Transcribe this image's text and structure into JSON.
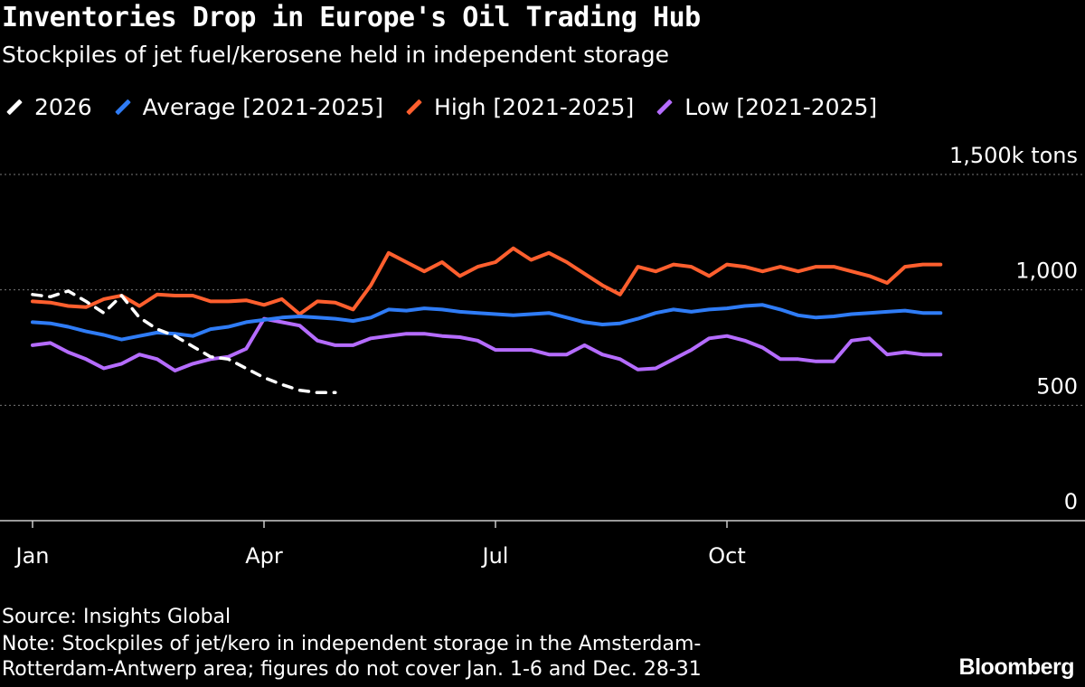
{
  "header": {
    "title": "Inventories Drop in Europe's Oil Trading Hub",
    "subtitle": "Stockpiles of jet fuel/kerosene held in independent storage"
  },
  "footer": {
    "source": "Source: Insights Global",
    "note_line1": "Note: Stockpiles of jet/kero in independent storage in the Amsterdam-",
    "note_line2": "Rotterdam-Antwerp area; figures do not cover Jan. 1-6 and Dec. 28-31",
    "brand": "Bloomberg"
  },
  "colors": {
    "background": "#000000",
    "s2026": "#ffffff",
    "average": "#2f7cf6",
    "high": "#ff5f2e",
    "low": "#b56cff",
    "grid": "#777777"
  },
  "chart_data": {
    "type": "line",
    "title": "Inventories Drop in Europe's Oil Trading Hub",
    "subtitle": "Stockpiles of jet fuel/kerosene held in independent storage",
    "ylim": [
      0,
      1500
    ],
    "y_ticks": [
      {
        "value": 0,
        "label": "0"
      },
      {
        "value": 500,
        "label": "500"
      },
      {
        "value": 1000,
        "label": "1,000"
      },
      {
        "value": 1500,
        "label": "1,500k tons"
      }
    ],
    "xlim": [
      0,
      52
    ],
    "x_ticks": [
      {
        "week": 0,
        "label": "Jan"
      },
      {
        "week": 13,
        "label": "Apr"
      },
      {
        "week": 26,
        "label": "Jul"
      },
      {
        "week": 39,
        "label": "Oct"
      }
    ],
    "grid": true,
    "legend_position": "top-left",
    "series": [
      {
        "name": "2026",
        "color": "#ffffff",
        "dashed": true,
        "x": [
          0,
          1,
          2,
          3,
          4,
          5,
          6,
          7,
          8,
          9,
          10,
          11,
          12,
          13,
          14,
          15,
          16,
          17
        ],
        "values": [
          980,
          970,
          995,
          950,
          900,
          975,
          880,
          830,
          800,
          755,
          710,
          700,
          660,
          620,
          590,
          565,
          555,
          555
        ]
      },
      {
        "name": "Average [2021-2025]",
        "color": "#2f7cf6",
        "dashed": false,
        "x": [
          0,
          1,
          2,
          3,
          4,
          5,
          6,
          7,
          8,
          9,
          10,
          11,
          12,
          13,
          14,
          15,
          16,
          17,
          18,
          19,
          20,
          21,
          22,
          23,
          24,
          25,
          26,
          27,
          28,
          29,
          30,
          31,
          32,
          33,
          34,
          35,
          36,
          37,
          38,
          39,
          40,
          41,
          42,
          43,
          44,
          45,
          46,
          47,
          48,
          49,
          50,
          51
        ],
        "values": [
          860,
          855,
          840,
          820,
          805,
          785,
          800,
          815,
          810,
          800,
          830,
          840,
          860,
          870,
          880,
          885,
          880,
          875,
          865,
          880,
          915,
          910,
          920,
          915,
          905,
          900,
          895,
          890,
          895,
          900,
          880,
          860,
          850,
          855,
          875,
          900,
          915,
          905,
          915,
          920,
          930,
          935,
          915,
          890,
          880,
          885,
          895,
          900,
          905,
          910,
          900,
          900
        ]
      },
      {
        "name": "High [2021-2025]",
        "color": "#ff5f2e",
        "dashed": false,
        "x": [
          0,
          1,
          2,
          3,
          4,
          5,
          6,
          7,
          8,
          9,
          10,
          11,
          12,
          13,
          14,
          15,
          16,
          17,
          18,
          19,
          20,
          21,
          22,
          23,
          24,
          25,
          26,
          27,
          28,
          29,
          30,
          31,
          32,
          33,
          34,
          35,
          36,
          37,
          38,
          39,
          40,
          41,
          42,
          43,
          44,
          45,
          46,
          47,
          48,
          49,
          50,
          51
        ],
        "values": [
          950,
          945,
          930,
          925,
          960,
          975,
          930,
          980,
          975,
          975,
          950,
          950,
          955,
          935,
          960,
          895,
          950,
          945,
          915,
          1020,
          1160,
          1120,
          1080,
          1120,
          1060,
          1100,
          1120,
          1180,
          1130,
          1160,
          1120,
          1070,
          1020,
          980,
          1100,
          1080,
          1110,
          1100,
          1060,
          1110,
          1100,
          1080,
          1100,
          1080,
          1100,
          1100,
          1080,
          1060,
          1030,
          1100,
          1110,
          1110
        ]
      },
      {
        "name": "Low [2021-2025]",
        "color": "#b56cff",
        "dashed": false,
        "x": [
          0,
          1,
          2,
          3,
          4,
          5,
          6,
          7,
          8,
          9,
          10,
          11,
          12,
          13,
          14,
          15,
          16,
          17,
          18,
          19,
          20,
          21,
          22,
          23,
          24,
          25,
          26,
          27,
          28,
          29,
          30,
          31,
          32,
          33,
          34,
          35,
          36,
          37,
          38,
          39,
          40,
          41,
          42,
          43,
          44,
          45,
          46,
          47,
          48,
          49,
          50,
          51
        ],
        "values": [
          760,
          770,
          730,
          700,
          660,
          680,
          720,
          700,
          650,
          680,
          700,
          710,
          745,
          875,
          860,
          845,
          780,
          760,
          760,
          790,
          800,
          810,
          810,
          800,
          795,
          780,
          740,
          740,
          740,
          720,
          720,
          760,
          720,
          700,
          655,
          660,
          700,
          740,
          790,
          800,
          780,
          750,
          700,
          700,
          690,
          690,
          780,
          790,
          720,
          730,
          720,
          720
        ]
      }
    ]
  }
}
